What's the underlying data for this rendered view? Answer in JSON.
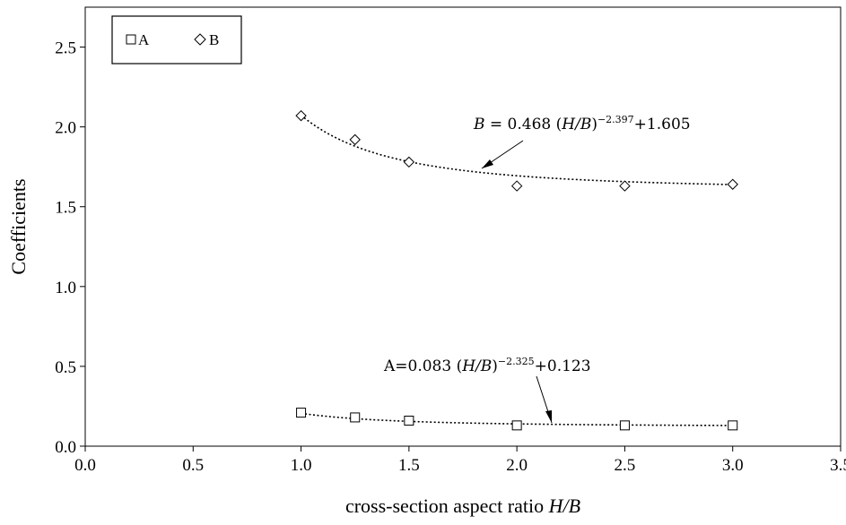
{
  "chart_data": {
    "type": "scatter",
    "xlabel": "cross-section aspect ratio",
    "xlabel_var": "H/B",
    "ylabel": "Coefficients",
    "xlim": [
      0.0,
      3.5
    ],
    "ylim": [
      0.0,
      2.75
    ],
    "xticks": [
      "0.0",
      "0.5",
      "1.0",
      "1.5",
      "2.0",
      "2.5",
      "3.0",
      "3.5"
    ],
    "yticks": [
      "0.0",
      "0.5",
      "1.0",
      "1.5",
      "2.0",
      "2.5"
    ],
    "legend_position": "top-left",
    "series": [
      {
        "name": "A",
        "marker": "square",
        "x": [
          1.0,
          1.25,
          1.5,
          2.0,
          2.5,
          3.0
        ],
        "y": [
          0.21,
          0.18,
          0.16,
          0.13,
          0.13,
          0.13
        ],
        "fit": {
          "a": 0.083,
          "b": -2.325,
          "c": 0.123
        }
      },
      {
        "name": "B",
        "marker": "diamond",
        "x": [
          1.0,
          1.25,
          1.5,
          2.0,
          2.5,
          3.0
        ],
        "y": [
          2.07,
          1.92,
          1.78,
          1.63,
          1.63,
          1.64
        ],
        "fit": {
          "a": 0.468,
          "b": -2.397,
          "c": 1.605
        }
      }
    ],
    "annotations": {
      "eq_b": {
        "lhs": "B",
        "eqsign": " = 0.468 (",
        "var": "H/B",
        "close": ")",
        "exp": "−2.397",
        "tail": "+1.605"
      },
      "eq_a": {
        "lhs": "A=0.083 (",
        "var": "H/B",
        "close": ")",
        "exp": "−2.325",
        "tail": "+0.123"
      }
    }
  }
}
